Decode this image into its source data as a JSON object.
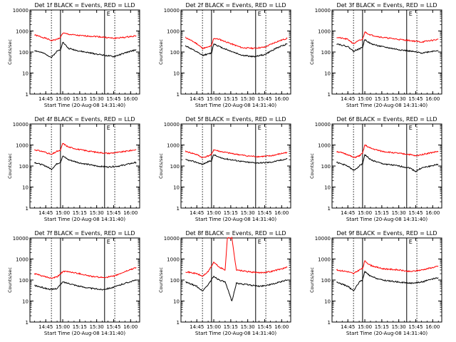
{
  "chart_data": [
    {
      "type": "line",
      "title": "Det 1f  BLACK = Events, RED = LLD",
      "xlabel": "Start Time (20-Aug-08 14:31:40)",
      "ylabel": "Counts/sec",
      "x_ticks": [
        "14:45",
        "15:00",
        "15:15",
        "15:30",
        "15:45",
        "16:00"
      ],
      "y_ticks": [
        "1",
        "10",
        "100",
        "1000",
        "10000"
      ],
      "y_scale": "log",
      "ylim": [
        1,
        10000
      ],
      "markers": [
        {
          "x": "14:50"
        },
        {
          "x": "14:58"
        },
        {
          "x": "15:37",
          "label": "E"
        },
        {
          "x": "15:46"
        }
      ],
      "series": [
        {
          "color": "#ff0000",
          "x": [
            "14:35",
            "14:45",
            "14:50",
            "14:55",
            "14:58",
            "15:00",
            "15:05",
            "15:15",
            "15:30",
            "15:37",
            "15:45",
            "15:55",
            "16:05"
          ],
          "y": [
            650,
            450,
            350,
            400,
            500,
            800,
            700,
            600,
            550,
            500,
            450,
            500,
            600
          ]
        },
        {
          "color": "#000000",
          "x": [
            "14:35",
            "14:45",
            "14:50",
            "14:55",
            "14:58",
            "15:00",
            "15:05",
            "15:15",
            "15:30",
            "15:37",
            "15:45",
            "15:55",
            "16:05"
          ],
          "y": [
            120,
            80,
            55,
            110,
            130,
            300,
            150,
            110,
            80,
            70,
            60,
            90,
            130
          ]
        }
      ]
    },
    {
      "type": "line",
      "title": "Det 2f  BLACK = Events, RED = LLD",
      "xlabel": "Start Time (20-Aug-08 14:31:40)",
      "ylabel": "Counts/sec",
      "x_ticks": [
        "14:45",
        "15:00",
        "15:15",
        "15:30",
        "15:45",
        "16:00"
      ],
      "y_ticks": [
        "1",
        "10",
        "100",
        "1000",
        "10000"
      ],
      "y_scale": "log",
      "ylim": [
        1,
        10000
      ],
      "markers": [
        {
          "x": "14:50"
        },
        {
          "x": "14:58"
        },
        {
          "x": "15:37",
          "label": "E"
        },
        {
          "x": "15:46"
        }
      ],
      "series": [
        {
          "color": "#ff0000",
          "x": [
            "14:35",
            "14:45",
            "14:50",
            "14:55",
            "14:58",
            "15:00",
            "15:05",
            "15:15",
            "15:25",
            "15:35",
            "15:45",
            "15:55",
            "16:05"
          ],
          "y": [
            500,
            250,
            150,
            170,
            200,
            450,
            400,
            250,
            160,
            150,
            170,
            300,
            450
          ]
        },
        {
          "color": "#000000",
          "x": [
            "14:35",
            "14:45",
            "14:50",
            "14:55",
            "14:58",
            "15:00",
            "15:05",
            "15:15",
            "15:25",
            "15:35",
            "15:45",
            "15:55",
            "16:05"
          ],
          "y": [
            200,
            100,
            70,
            80,
            90,
            250,
            180,
            110,
            70,
            60,
            75,
            150,
            250
          ]
        }
      ]
    },
    {
      "type": "line",
      "title": "Det 3f  BLACK = Events, RED = LLD",
      "xlabel": "Start Time (20-Aug-08 14:31:40)",
      "ylabel": "Counts/sec",
      "x_ticks": [
        "14:45",
        "15:00",
        "15:15",
        "15:30",
        "15:45",
        "16:00"
      ],
      "y_ticks": [
        "1",
        "10",
        "100",
        "1000",
        "10000"
      ],
      "y_scale": "log",
      "ylim": [
        1,
        10000
      ],
      "markers": [
        {
          "x": "14:50"
        },
        {
          "x": "14:58"
        },
        {
          "x": "15:37",
          "label": "E"
        },
        {
          "x": "15:46"
        }
      ],
      "series": [
        {
          "color": "#ff0000",
          "x": [
            "14:35",
            "14:45",
            "14:50",
            "14:55",
            "14:58",
            "15:00",
            "15:05",
            "15:15",
            "15:30",
            "15:40",
            "15:50",
            "16:05"
          ],
          "y": [
            500,
            400,
            250,
            350,
            400,
            900,
            650,
            500,
            400,
            350,
            300,
            400
          ]
        },
        {
          "color": "#000000",
          "x": [
            "14:35",
            "14:45",
            "14:50",
            "14:55",
            "14:58",
            "15:00",
            "15:05",
            "15:15",
            "15:30",
            "15:40",
            "15:50",
            "16:05"
          ],
          "y": [
            250,
            180,
            110,
            140,
            170,
            400,
            250,
            180,
            130,
            110,
            90,
            120
          ]
        }
      ]
    },
    {
      "type": "line",
      "title": "Det 4f  BLACK = Events, RED = LLD",
      "xlabel": "Start Time (20-Aug-08 14:31:40)",
      "ylabel": "Counts/sec",
      "x_ticks": [
        "14:45",
        "15:00",
        "15:15",
        "15:30",
        "15:45",
        "16:00"
      ],
      "y_ticks": [
        "1",
        "10",
        "100",
        "1000",
        "10000"
      ],
      "y_scale": "log",
      "ylim": [
        1,
        10000
      ],
      "markers": [
        {
          "x": "14:50"
        },
        {
          "x": "14:58"
        },
        {
          "x": "15:37",
          "label": "E"
        },
        {
          "x": "15:46"
        }
      ],
      "series": [
        {
          "color": "#ff0000",
          "x": [
            "14:35",
            "14:45",
            "14:50",
            "14:55",
            "14:58",
            "15:00",
            "15:05",
            "15:15",
            "15:30",
            "15:40",
            "15:50",
            "16:05"
          ],
          "y": [
            600,
            450,
            350,
            500,
            550,
            1200,
            800,
            600,
            450,
            400,
            450,
            600
          ]
        },
        {
          "color": "#000000",
          "x": [
            "14:35",
            "14:45",
            "14:50",
            "14:55",
            "14:58",
            "15:00",
            "15:05",
            "15:15",
            "15:30",
            "15:40",
            "15:50",
            "16:05"
          ],
          "y": [
            150,
            100,
            70,
            130,
            150,
            300,
            200,
            140,
            100,
            90,
            100,
            150
          ]
        }
      ]
    },
    {
      "type": "line",
      "title": "Det 5f  BLACK = Events, RED = LLD",
      "xlabel": "Start Time (20-Aug-08 14:31:40)",
      "ylabel": "Counts/sec",
      "x_ticks": [
        "14:45",
        "15:00",
        "15:15",
        "15:30",
        "15:45",
        "16:00"
      ],
      "y_ticks": [
        "1",
        "10",
        "100",
        "1000",
        "10000"
      ],
      "y_scale": "log",
      "ylim": [
        1,
        10000
      ],
      "markers": [
        {
          "x": "14:50"
        },
        {
          "x": "14:58"
        },
        {
          "x": "15:37",
          "label": "E"
        },
        {
          "x": "15:46"
        }
      ],
      "series": [
        {
          "color": "#ff0000",
          "x": [
            "14:35",
            "14:45",
            "14:50",
            "14:55",
            "14:58",
            "15:00",
            "15:05",
            "15:15",
            "15:30",
            "15:40",
            "15:50",
            "16:05"
          ],
          "y": [
            500,
            350,
            250,
            300,
            350,
            600,
            500,
            400,
            300,
            280,
            300,
            450
          ]
        },
        {
          "color": "#000000",
          "x": [
            "14:35",
            "14:45",
            "14:50",
            "14:55",
            "14:58",
            "15:00",
            "15:05",
            "15:15",
            "15:30",
            "15:40",
            "15:50",
            "16:05"
          ],
          "y": [
            200,
            150,
            120,
            160,
            180,
            350,
            250,
            200,
            150,
            140,
            150,
            220
          ]
        }
      ]
    },
    {
      "type": "line",
      "title": "Det 6f  BLACK = Events, RED = LLD",
      "xlabel": "Start Time (20-Aug-08 14:31:40)",
      "ylabel": "Counts/sec",
      "x_ticks": [
        "14:45",
        "15:00",
        "15:15",
        "15:30",
        "15:45",
        "16:00"
      ],
      "y_ticks": [
        "1",
        "10",
        "100",
        "1000",
        "10000"
      ],
      "y_scale": "log",
      "ylim": [
        1,
        10000
      ],
      "markers": [
        {
          "x": "14:50"
        },
        {
          "x": "14:58"
        },
        {
          "x": "15:37",
          "label": "E"
        },
        {
          "x": "15:46"
        }
      ],
      "series": [
        {
          "color": "#ff0000",
          "x": [
            "14:35",
            "14:45",
            "14:50",
            "14:55",
            "14:58",
            "15:00",
            "15:05",
            "15:15",
            "15:30",
            "15:40",
            "15:45",
            "15:50",
            "16:05"
          ],
          "y": [
            500,
            350,
            250,
            300,
            400,
            1000,
            700,
            500,
            400,
            350,
            300,
            350,
            500
          ]
        },
        {
          "color": "#000000",
          "x": [
            "14:35",
            "14:45",
            "14:50",
            "14:55",
            "14:58",
            "15:00",
            "15:05",
            "15:15",
            "15:30",
            "15:40",
            "15:45",
            "15:50",
            "16:05"
          ],
          "y": [
            150,
            100,
            60,
            100,
            130,
            350,
            200,
            130,
            100,
            80,
            55,
            80,
            120
          ]
        }
      ]
    },
    {
      "type": "line",
      "title": "Det 7f  BLACK = Events, RED = LLD",
      "xlabel": "Start Time (20-Aug-08 14:31:40)",
      "ylabel": "Counts/sec",
      "x_ticks": [
        "14:45",
        "15:00",
        "15:15",
        "15:30",
        "15:45",
        "16:00"
      ],
      "y_ticks": [
        "1",
        "10",
        "100",
        "1000",
        "10000"
      ],
      "y_scale": "log",
      "ylim": [
        1,
        10000
      ],
      "markers": [
        {
          "x": "14:50"
        },
        {
          "x": "14:58"
        },
        {
          "x": "15:37",
          "label": "E"
        },
        {
          "x": "15:46"
        }
      ],
      "series": [
        {
          "color": "#ff0000",
          "x": [
            "14:35",
            "14:45",
            "14:50",
            "14:55",
            "15:00",
            "15:05",
            "15:15",
            "15:25",
            "15:35",
            "15:45",
            "15:55",
            "16:05"
          ],
          "y": [
            200,
            140,
            120,
            140,
            250,
            250,
            200,
            150,
            130,
            150,
            250,
            400
          ]
        },
        {
          "color": "#000000",
          "x": [
            "14:35",
            "14:45",
            "14:50",
            "14:55",
            "15:00",
            "15:05",
            "15:15",
            "15:25",
            "15:35",
            "15:45",
            "15:55",
            "16:05"
          ],
          "y": [
            55,
            40,
            35,
            40,
            80,
            70,
            50,
            40,
            35,
            45,
            70,
            100
          ]
        }
      ]
    },
    {
      "type": "line",
      "title": "Det 8f  BLACK = Events, RED = LLD",
      "xlabel": "Start Time (20-Aug-08 14:31:40)",
      "ylabel": "Counts/sec",
      "x_ticks": [
        "14:45",
        "15:00",
        "15:15",
        "15:30",
        "15:45",
        "16:00"
      ],
      "y_ticks": [
        "1",
        "10",
        "100",
        "1000",
        "10000"
      ],
      "y_scale": "log",
      "ylim": [
        1,
        10000
      ],
      "markers": [
        {
          "x": "14:50"
        },
        {
          "x": "14:58"
        },
        {
          "x": "15:37",
          "label": "E"
        },
        {
          "x": "15:46"
        }
      ],
      "series": [
        {
          "color": "#ff0000",
          "x": [
            "14:35",
            "14:45",
            "14:50",
            "14:55",
            "15:00",
            "15:05",
            "15:10",
            "15:12",
            "15:16",
            "15:20",
            "15:30",
            "15:40",
            "15:50",
            "16:05"
          ],
          "y": [
            250,
            200,
            150,
            250,
            700,
            400,
            300,
            10000,
            10000,
            300,
            250,
            220,
            250,
            400
          ]
        },
        {
          "color": "#000000",
          "x": [
            "14:35",
            "14:45",
            "14:50",
            "14:55",
            "15:00",
            "15:05",
            "15:10",
            "15:16",
            "15:20",
            "15:30",
            "15:40",
            "15:50",
            "16:05"
          ],
          "y": [
            80,
            50,
            30,
            60,
            150,
            100,
            80,
            10,
            70,
            60,
            50,
            60,
            100
          ]
        }
      ]
    },
    {
      "type": "line",
      "title": "Det 9f  BLACK = Events, RED = LLD",
      "xlabel": "Start Time (20-Aug-08 14:31:40)",
      "ylabel": "Counts/sec",
      "x_ticks": [
        "14:45",
        "15:00",
        "15:15",
        "15:30",
        "15:45",
        "16:00"
      ],
      "y_ticks": [
        "1",
        "10",
        "100",
        "1000",
        "10000"
      ],
      "y_scale": "log",
      "ylim": [
        1,
        10000
      ],
      "markers": [
        {
          "x": "14:50"
        },
        {
          "x": "14:58"
        },
        {
          "x": "15:37",
          "label": "E"
        },
        {
          "x": "15:46"
        }
      ],
      "series": [
        {
          "color": "#ff0000",
          "x": [
            "14:35",
            "14:45",
            "14:50",
            "14:55",
            "14:58",
            "15:00",
            "15:05",
            "15:15",
            "15:30",
            "15:40",
            "15:50",
            "16:05"
          ],
          "y": [
            300,
            250,
            200,
            300,
            350,
            800,
            500,
            350,
            300,
            250,
            300,
            450
          ]
        },
        {
          "color": "#000000",
          "x": [
            "14:35",
            "14:45",
            "14:50",
            "14:55",
            "14:58",
            "15:00",
            "15:05",
            "15:15",
            "15:30",
            "15:40",
            "15:50",
            "16:05"
          ],
          "y": [
            80,
            50,
            30,
            80,
            100,
            250,
            150,
            100,
            80,
            70,
            80,
            130
          ]
        }
      ]
    }
  ]
}
